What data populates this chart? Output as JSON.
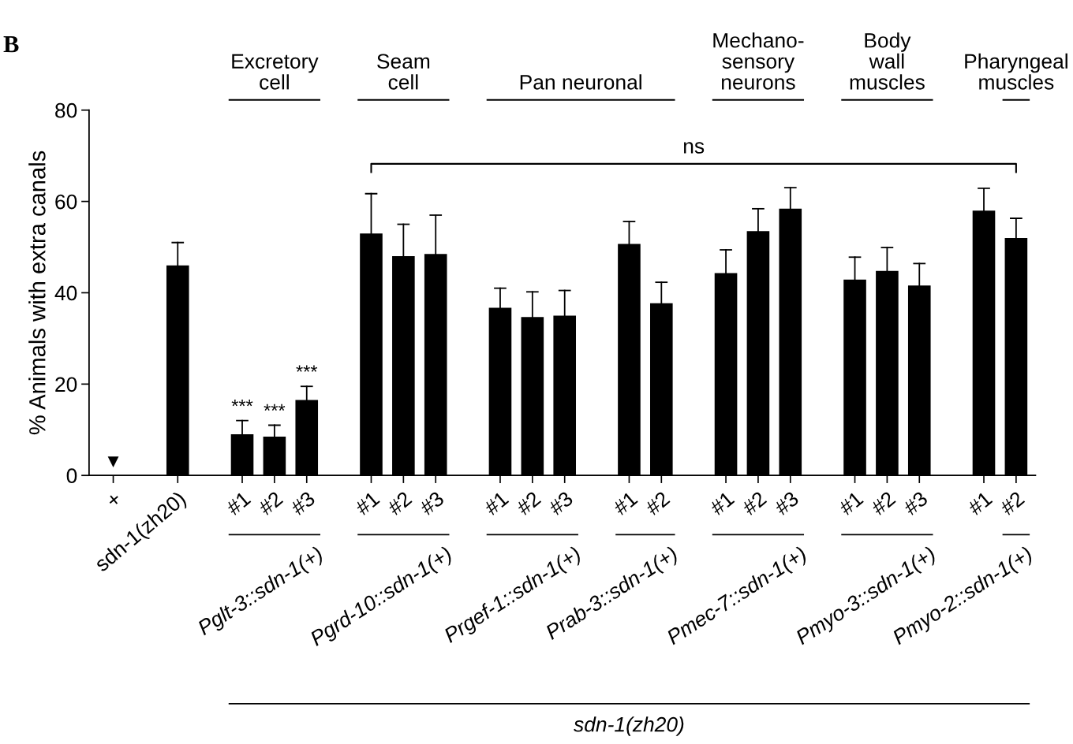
{
  "chart_data": {
    "type": "bar",
    "ylabel": "% Animals with extra canals",
    "categories": [
      "+",
      null,
      "sdn-1(zh20)",
      null,
      "#1",
      "#2",
      "#3",
      null,
      "#1",
      "#2",
      "#3",
      null,
      "#1",
      "#2",
      "#3",
      null,
      "#1",
      "#2",
      null,
      "#1",
      "#2",
      "#3",
      null,
      "#1",
      "#2",
      "#3",
      null,
      "#1",
      "#2"
    ],
    "values": [
      0,
      null,
      46,
      null,
      9,
      8.5,
      16.5,
      null,
      53,
      48,
      48.5,
      null,
      36.7,
      34.7,
      35,
      null,
      50.7,
      37.7,
      null,
      44.3,
      53.5,
      58.4,
      null,
      42.9,
      44.8,
      41.6,
      null,
      58,
      52
    ],
    "errors": [
      null,
      null,
      [
        46,
        51
      ],
      null,
      [
        9,
        12
      ],
      [
        8.5,
        11
      ],
      [
        16.5,
        19.5
      ],
      null,
      [
        53,
        61.7
      ],
      [
        48,
        55
      ],
      [
        48.5,
        57
      ],
      null,
      [
        36.7,
        41
      ],
      [
        34.7,
        40.2
      ],
      [
        35,
        40.5
      ],
      null,
      [
        50.7,
        55.6
      ],
      [
        37.7,
        42.3
      ],
      null,
      [
        44.3,
        49.4
      ],
      [
        53.5,
        58.4
      ],
      [
        58.4,
        63
      ],
      null,
      [
        42.9,
        47.8
      ],
      [
        44.8,
        49.9
      ],
      [
        41.6,
        46.4
      ],
      null,
      [
        58,
        62.9
      ],
      [
        52,
        56.3
      ]
    ],
    "value_labels": [
      "▼",
      null,
      null,
      null,
      "***",
      "***",
      "***",
      null,
      null,
      null,
      null,
      null,
      null,
      null,
      null,
      null,
      null,
      null,
      null,
      null,
      null,
      null,
      null,
      null,
      null,
      null,
      null,
      null,
      null
    ],
    "color": "#000000",
    "ylim": [
      0,
      80
    ],
    "yticks": [
      0,
      20,
      40,
      60,
      80
    ],
    "annotations": [
      "B",
      "Excretory\ncell",
      "Seam\ncell",
      "Pan neuronal",
      "Mechano-\nsensory\nneurons",
      "Body\nwall\nmuscles",
      "Pharyngeal\nmuscles",
      "Pglt-3::sdn-1(+)",
      "Pgrd-10::sdn-1(+)",
      "Prgef-1::sdn-1(+)",
      "Prab-3::sdn-1(+)",
      "Pmec-7::sdn-1(+)",
      "Pmyo-3::sdn-1(+)",
      "Pmyo-2::sdn-1(+)",
      "sdn-1(zh20)",
      "ns"
    ]
  }
}
